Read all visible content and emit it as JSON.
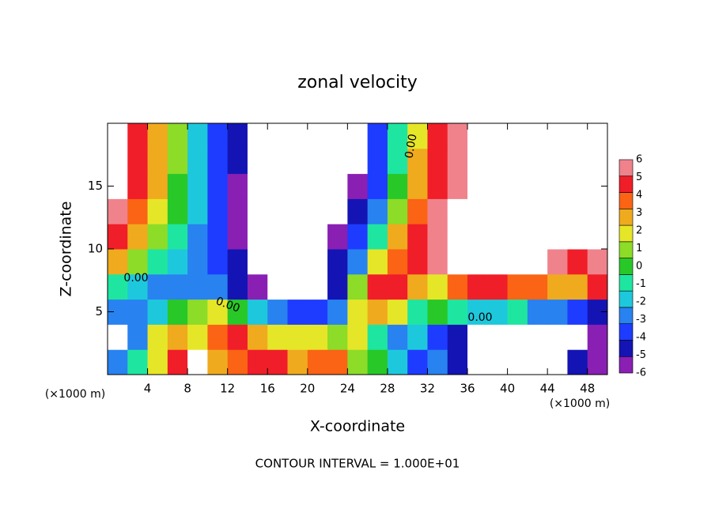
{
  "chart_data": {
    "type": "heatmap",
    "title": "zonal velocity",
    "x_label": "X-coordinate",
    "y_label": "Z-coordinate",
    "x_unit_label": "(×1000 m)",
    "y_unit_label": "(×1000 m)",
    "footer": "CONTOUR INTERVAL = 1.000E+01",
    "contour_labels": [
      "0.00",
      "0.00",
      "0.00",
      "0.00"
    ],
    "xlim": [
      0,
      50
    ],
    "ylim": [
      0,
      20
    ],
    "xticks": [
      4,
      8,
      12,
      16,
      20,
      24,
      28,
      32,
      36,
      40,
      44,
      48
    ],
    "yticks": [
      5,
      10,
      15
    ],
    "x": [
      1,
      3,
      5,
      7,
      9,
      11,
      13,
      15,
      17,
      19,
      21,
      23,
      25,
      27,
      29,
      31,
      33,
      35,
      37,
      39,
      41,
      43,
      45,
      47,
      49
    ],
    "y": [
      1,
      3,
      5,
      7,
      9,
      11,
      13,
      15,
      17,
      19
    ],
    "z": [
      [
        -3,
        -1,
        2,
        5,
        9,
        3,
        4,
        5,
        5,
        3,
        4,
        4,
        1,
        0,
        -2,
        -4,
        -3,
        -5,
        -9,
        -9,
        -9,
        -9,
        -9,
        -5,
        -6
      ],
      [
        -9,
        -3,
        2,
        3,
        2,
        4,
        5,
        3,
        2,
        2,
        2,
        1,
        2,
        -1,
        -3,
        -2,
        -4,
        -5,
        -9,
        -9,
        -9,
        -9,
        -9,
        -9,
        -6
      ],
      [
        -3,
        -3,
        -2,
        0,
        1,
        2,
        0,
        -2,
        -3,
        -4,
        -4,
        -3,
        2,
        3,
        2,
        -1,
        0,
        -1,
        -2,
        -2,
        -1,
        -3,
        -3,
        -4,
        -5
      ],
      [
        -1,
        -2,
        -3,
        -3,
        -3,
        -3,
        -5,
        -6,
        -9,
        -9,
        -9,
        -5,
        1,
        5,
        5,
        3,
        2,
        4,
        5,
        5,
        4,
        4,
        3,
        3,
        5
      ],
      [
        3,
        1,
        -1,
        -2,
        -3,
        -4,
        -5,
        -9,
        -9,
        -9,
        -9,
        -5,
        -3,
        2,
        4,
        5,
        6,
        9,
        9,
        9,
        9,
        9,
        6,
        5,
        6
      ],
      [
        5,
        3,
        1,
        -1,
        -3,
        -4,
        -6,
        -9,
        -9,
        -9,
        -9,
        -6,
        -4,
        -1,
        3,
        5,
        6,
        9,
        9,
        9,
        9,
        9,
        9,
        9,
        9
      ],
      [
        6,
        4,
        2,
        0,
        -2,
        -4,
        -6,
        -9,
        -9,
        -9,
        -9,
        -9,
        -5,
        -3,
        1,
        4,
        6,
        9,
        9,
        9,
        9,
        9,
        9,
        9,
        9
      ],
      [
        9,
        5,
        3,
        0,
        -2,
        -4,
        -6,
        -9,
        -9,
        -9,
        -9,
        -9,
        -6,
        -4,
        0,
        3,
        5,
        6,
        9,
        9,
        9,
        9,
        9,
        9,
        9
      ],
      [
        9,
        5,
        3,
        1,
        -2,
        -4,
        -5,
        -9,
        -9,
        -9,
        -9,
        -9,
        -9,
        -4,
        -1,
        3,
        5,
        6,
        9,
        9,
        9,
        9,
        9,
        9,
        9
      ],
      [
        9,
        5,
        3,
        1,
        -2,
        -4,
        -5,
        -9,
        -9,
        -9,
        -9,
        -9,
        -9,
        -4,
        -1,
        2,
        5,
        6,
        9,
        9,
        9,
        9,
        9,
        9,
        9
      ]
    ],
    "colorbar": {
      "values": [
        -6,
        -5,
        -4,
        -3,
        -2,
        -1,
        0,
        1,
        2,
        3,
        4,
        5,
        6
      ],
      "colors": [
        "#8a1fb4",
        "#1414b4",
        "#1e3cff",
        "#2882f0",
        "#1ec8dc",
        "#1ee6a0",
        "#28c828",
        "#8cdc28",
        "#e6e628",
        "#f0aa1e",
        "#fa6414",
        "#f01e28",
        "#f0828c"
      ]
    }
  }
}
